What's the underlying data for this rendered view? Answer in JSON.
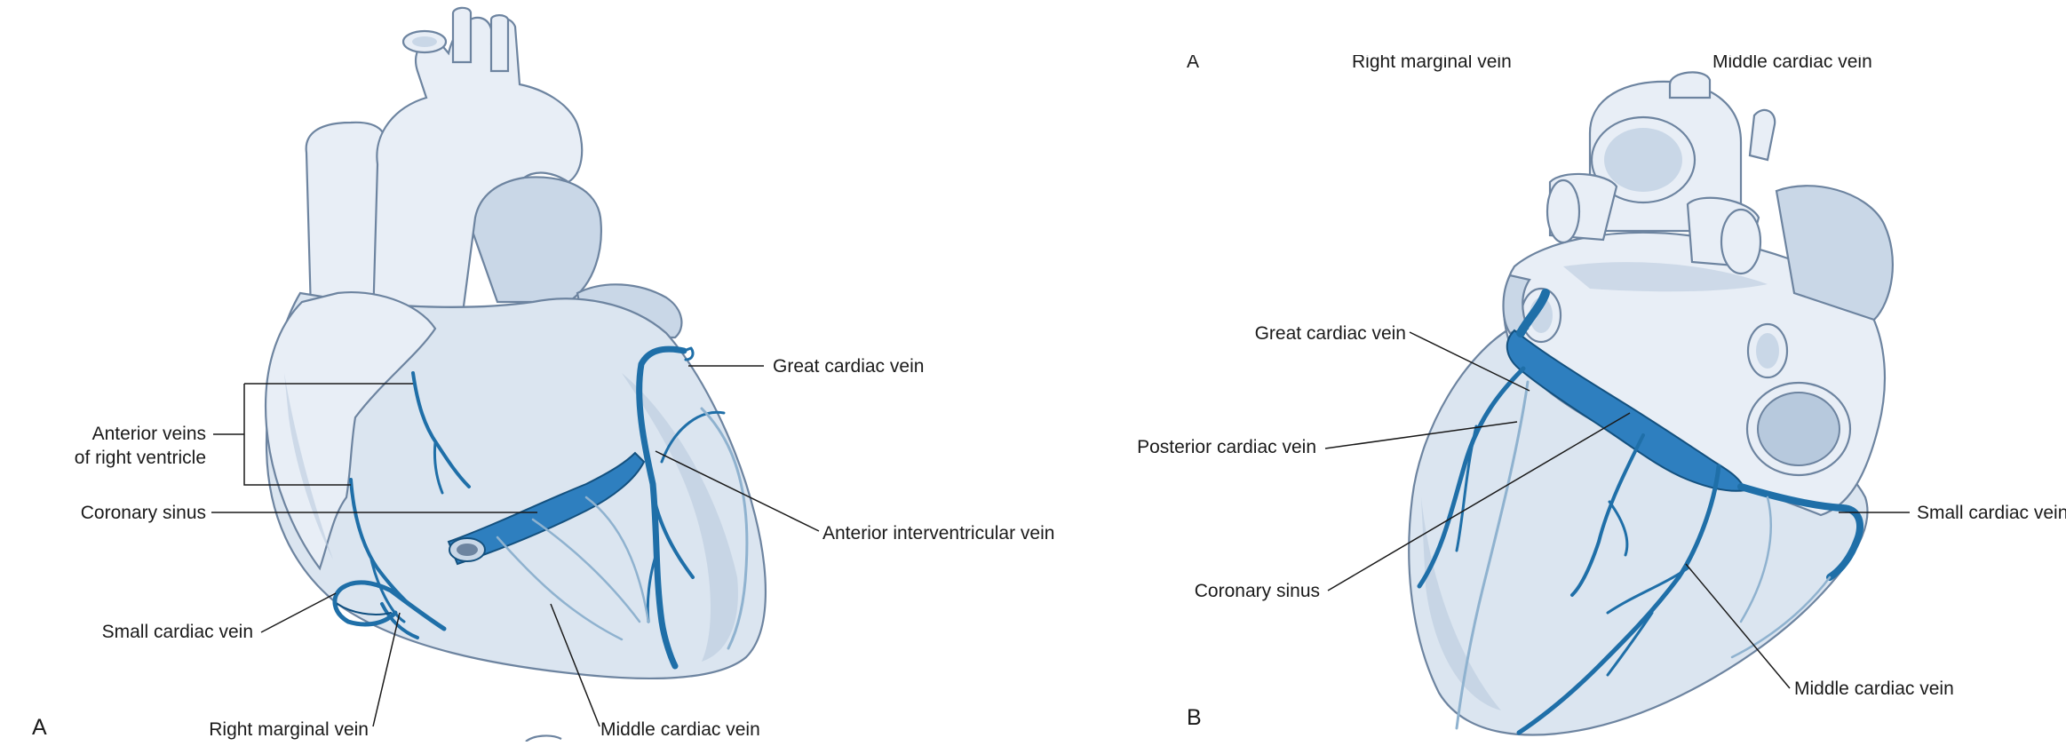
{
  "panels": [
    {
      "letter": "A",
      "labels": {
        "anterior_veins_line1": "Anterior veins",
        "anterior_veins_line2": "of right ventricle",
        "coronary_sinus": "Coronary sinus",
        "small_cardiac_vein": "Small cardiac vein",
        "right_marginal_vein": "Right marginal vein",
        "middle_cardiac_vein": "Middle cardiac vein",
        "great_cardiac_vein": "Great cardiac vein",
        "anterior_interventricular_vein": "Anterior interventricular vein"
      }
    },
    {
      "letter": "B",
      "labels": {
        "great_cardiac_vein": "Great cardiac vein",
        "posterior_cardiac_vein": "Posterior cardiac vein",
        "coronary_sinus": "Coronary sinus",
        "small_cardiac_vein": "Small cardiac vein",
        "middle_cardiac_vein": "Middle cardiac vein"
      },
      "cropped_top_labels": [
        "A",
        "Right marginal vein",
        "Middle cardiac vein"
      ]
    }
  ],
  "colors": {
    "vein_blue": "#1f6fa8",
    "heart_fill": "#dbe5f0",
    "outline": "#6d84a0",
    "text": "#1a1a1a"
  }
}
